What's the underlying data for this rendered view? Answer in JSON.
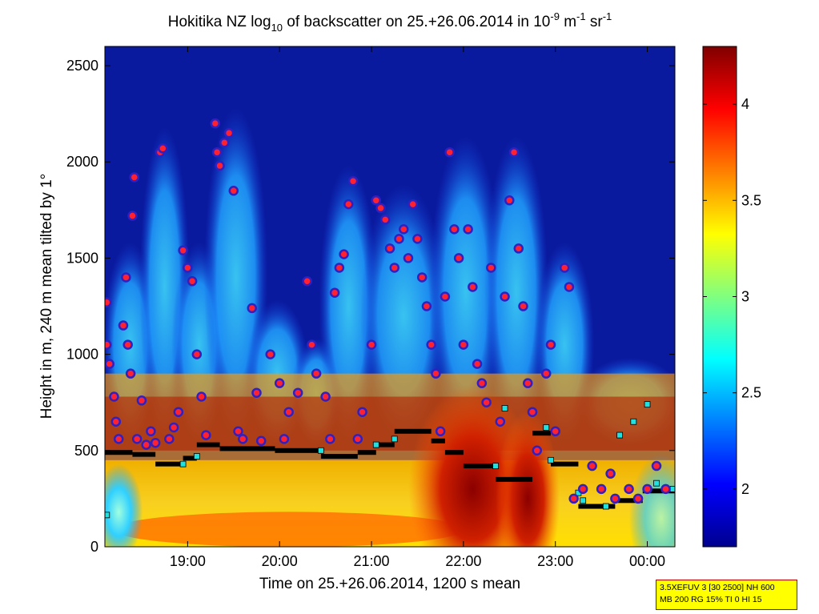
{
  "chart_data": {
    "type": "heatmap",
    "title": {
      "main": "Hokitika NZ log",
      "sub": "10",
      "mid": " of backscatter on 25.+26.06.2014 in 10",
      "sup1": "-9",
      "mid2": " m",
      "sup2": "-1",
      "mid3": " sr",
      "sup3": "-1"
    },
    "xlabel": "Time on 25.+26.06.2014, 1200 s mean",
    "ylabel": "Height in m, 240 m mean tilted by 1°",
    "x_ticks": [
      "19:00",
      "20:00",
      "21:00",
      "22:00",
      "23:00",
      "00:00"
    ],
    "x_tick_hours": [
      19,
      20,
      21,
      22,
      23,
      24
    ],
    "xlim_hours": [
      18.1,
      24.3
    ],
    "y_ticks": [
      0,
      500,
      1000,
      1500,
      2000,
      2500
    ],
    "ylim": [
      0,
      2600
    ],
    "colorbar": {
      "ticks": [
        "2",
        "2.5",
        "3",
        "3.5",
        "4"
      ],
      "tick_values": [
        2,
        2.5,
        3,
        3.5,
        4
      ],
      "range": [
        1.7,
        4.3
      ]
    },
    "cloud_base_points": [
      {
        "t": 18.12,
        "h": 1270
      },
      {
        "t": 18.12,
        "h": 1050
      },
      {
        "t": 18.15,
        "h": 950
      },
      {
        "t": 18.2,
        "h": 780
      },
      {
        "t": 18.22,
        "h": 650
      },
      {
        "t": 18.25,
        "h": 560
      },
      {
        "t": 18.3,
        "h": 1150
      },
      {
        "t": 18.33,
        "h": 1400
      },
      {
        "t": 18.35,
        "h": 1050
      },
      {
        "t": 18.38,
        "h": 900
      },
      {
        "t": 18.4,
        "h": 1720
      },
      {
        "t": 18.42,
        "h": 1920
      },
      {
        "t": 18.45,
        "h": 560
      },
      {
        "t": 18.5,
        "h": 760
      },
      {
        "t": 18.55,
        "h": 530
      },
      {
        "t": 18.6,
        "h": 600
      },
      {
        "t": 18.65,
        "h": 540
      },
      {
        "t": 18.7,
        "h": 2050
      },
      {
        "t": 18.73,
        "h": 2070
      },
      {
        "t": 18.8,
        "h": 560
      },
      {
        "t": 18.85,
        "h": 620
      },
      {
        "t": 18.9,
        "h": 700
      },
      {
        "t": 18.95,
        "h": 1540
      },
      {
        "t": 19.0,
        "h": 1450
      },
      {
        "t": 19.05,
        "h": 1380
      },
      {
        "t": 19.1,
        "h": 1000
      },
      {
        "t": 19.15,
        "h": 780
      },
      {
        "t": 19.2,
        "h": 580
      },
      {
        "t": 19.3,
        "h": 2200
      },
      {
        "t": 19.32,
        "h": 2050
      },
      {
        "t": 19.35,
        "h": 1980
      },
      {
        "t": 19.4,
        "h": 2100
      },
      {
        "t": 19.45,
        "h": 2150
      },
      {
        "t": 19.5,
        "h": 1850
      },
      {
        "t": 19.55,
        "h": 600
      },
      {
        "t": 19.6,
        "h": 560
      },
      {
        "t": 19.7,
        "h": 1240
      },
      {
        "t": 19.75,
        "h": 800
      },
      {
        "t": 19.8,
        "h": 550
      },
      {
        "t": 19.9,
        "h": 1000
      },
      {
        "t": 20.0,
        "h": 850
      },
      {
        "t": 20.05,
        "h": 560
      },
      {
        "t": 20.1,
        "h": 700
      },
      {
        "t": 20.2,
        "h": 800
      },
      {
        "t": 20.3,
        "h": 1380
      },
      {
        "t": 20.35,
        "h": 1050
      },
      {
        "t": 20.4,
        "h": 900
      },
      {
        "t": 20.5,
        "h": 780
      },
      {
        "t": 20.55,
        "h": 560
      },
      {
        "t": 20.6,
        "h": 1320
      },
      {
        "t": 20.65,
        "h": 1450
      },
      {
        "t": 20.7,
        "h": 1520
      },
      {
        "t": 20.75,
        "h": 1780
      },
      {
        "t": 20.8,
        "h": 1900
      },
      {
        "t": 20.85,
        "h": 560
      },
      {
        "t": 20.9,
        "h": 700
      },
      {
        "t": 21.0,
        "h": 1050
      },
      {
        "t": 21.05,
        "h": 1800
      },
      {
        "t": 21.1,
        "h": 1760
      },
      {
        "t": 21.15,
        "h": 1700
      },
      {
        "t": 21.2,
        "h": 1550
      },
      {
        "t": 21.25,
        "h": 1450
      },
      {
        "t": 21.3,
        "h": 1600
      },
      {
        "t": 21.35,
        "h": 1650
      },
      {
        "t": 21.4,
        "h": 1500
      },
      {
        "t": 21.45,
        "h": 1780
      },
      {
        "t": 21.5,
        "h": 1600
      },
      {
        "t": 21.55,
        "h": 1400
      },
      {
        "t": 21.6,
        "h": 1250
      },
      {
        "t": 21.65,
        "h": 1050
      },
      {
        "t": 21.7,
        "h": 900
      },
      {
        "t": 21.75,
        "h": 600
      },
      {
        "t": 21.8,
        "h": 1300
      },
      {
        "t": 21.85,
        "h": 2050
      },
      {
        "t": 21.9,
        "h": 1650
      },
      {
        "t": 21.95,
        "h": 1500
      },
      {
        "t": 22.0,
        "h": 1050
      },
      {
        "t": 22.05,
        "h": 1650
      },
      {
        "t": 22.1,
        "h": 1350
      },
      {
        "t": 22.15,
        "h": 950
      },
      {
        "t": 22.2,
        "h": 850
      },
      {
        "t": 22.25,
        "h": 750
      },
      {
        "t": 22.3,
        "h": 1450
      },
      {
        "t": 22.4,
        "h": 650
      },
      {
        "t": 22.45,
        "h": 1300
      },
      {
        "t": 22.5,
        "h": 1800
      },
      {
        "t": 22.55,
        "h": 2050
      },
      {
        "t": 22.6,
        "h": 1550
      },
      {
        "t": 22.65,
        "h": 1250
      },
      {
        "t": 22.7,
        "h": 850
      },
      {
        "t": 22.75,
        "h": 700
      },
      {
        "t": 22.8,
        "h": 500
      },
      {
        "t": 22.9,
        "h": 900
      },
      {
        "t": 22.95,
        "h": 1050
      },
      {
        "t": 23.0,
        "h": 600
      },
      {
        "t": 23.1,
        "h": 1450
      },
      {
        "t": 23.15,
        "h": 1350
      },
      {
        "t": 23.2,
        "h": 250
      },
      {
        "t": 23.3,
        "h": 300
      },
      {
        "t": 23.4,
        "h": 420
      },
      {
        "t": 23.5,
        "h": 300
      },
      {
        "t": 23.6,
        "h": 380
      },
      {
        "t": 23.65,
        "h": 250
      },
      {
        "t": 23.8,
        "h": 300
      },
      {
        "t": 23.9,
        "h": 250
      },
      {
        "t": 24.0,
        "h": 300
      },
      {
        "t": 24.1,
        "h": 420
      },
      {
        "t": 24.2,
        "h": 300
      }
    ],
    "mixing_layer_segments": [
      {
        "t0": 18.1,
        "t1": 18.4,
        "h": 490
      },
      {
        "t0": 18.4,
        "t1": 18.65,
        "h": 480
      },
      {
        "t0": 18.65,
        "t1": 18.95,
        "h": 430
      },
      {
        "t0": 18.95,
        "t1": 19.1,
        "h": 460
      },
      {
        "t0": 19.1,
        "t1": 19.35,
        "h": 530
      },
      {
        "t0": 19.35,
        "t1": 19.95,
        "h": 510
      },
      {
        "t0": 19.95,
        "t1": 20.45,
        "h": 500
      },
      {
        "t0": 20.45,
        "t1": 20.85,
        "h": 470
      },
      {
        "t0": 20.85,
        "t1": 21.05,
        "h": 490
      },
      {
        "t0": 21.05,
        "t1": 21.25,
        "h": 530
      },
      {
        "t0": 21.25,
        "t1": 21.65,
        "h": 600
      },
      {
        "t0": 21.65,
        "t1": 21.8,
        "h": 550
      },
      {
        "t0": 21.8,
        "t1": 22.0,
        "h": 490
      },
      {
        "t0": 22.0,
        "t1": 22.35,
        "h": 420
      },
      {
        "t0": 22.35,
        "t1": 22.75,
        "h": 350
      },
      {
        "t0": 22.75,
        "t1": 22.95,
        "h": 590
      },
      {
        "t0": 22.95,
        "t1": 23.25,
        "h": 430
      },
      {
        "t0": 23.25,
        "t1": 23.65,
        "h": 210
      },
      {
        "t0": 23.65,
        "t1": 23.95,
        "h": 240
      },
      {
        "t0": 23.95,
        "t1": 24.3,
        "h": 290
      }
    ],
    "aerosol_layer_points": [
      {
        "t": 18.12,
        "h": 165
      },
      {
        "t": 18.95,
        "h": 430
      },
      {
        "t": 19.1,
        "h": 470
      },
      {
        "t": 20.45,
        "h": 500
      },
      {
        "t": 21.05,
        "h": 530
      },
      {
        "t": 21.25,
        "h": 560
      },
      {
        "t": 22.35,
        "h": 420
      },
      {
        "t": 22.45,
        "h": 720
      },
      {
        "t": 22.9,
        "h": 620
      },
      {
        "t": 22.95,
        "h": 450
      },
      {
        "t": 23.25,
        "h": 280
      },
      {
        "t": 23.3,
        "h": 240
      },
      {
        "t": 23.55,
        "h": 210
      },
      {
        "t": 23.7,
        "h": 580
      },
      {
        "t": 23.85,
        "h": 650
      },
      {
        "t": 24.0,
        "h": 740
      },
      {
        "t": 24.1,
        "h": 330
      },
      {
        "t": 24.28,
        "h": 300
      }
    ]
  },
  "info_box": {
    "line1": "3.5XEFUV 3 [30 2500] NH 600",
    "line2": "MB 200 RG 15% TI 0 HI 15"
  },
  "colors": {
    "background_blue": "#0a1a9e",
    "cloud_dot_fill": "#ff2030",
    "cloud_dot_ring": "#3020c0",
    "mixing_layer": "#000000",
    "aerosol_marker": "#20e0e0"
  }
}
